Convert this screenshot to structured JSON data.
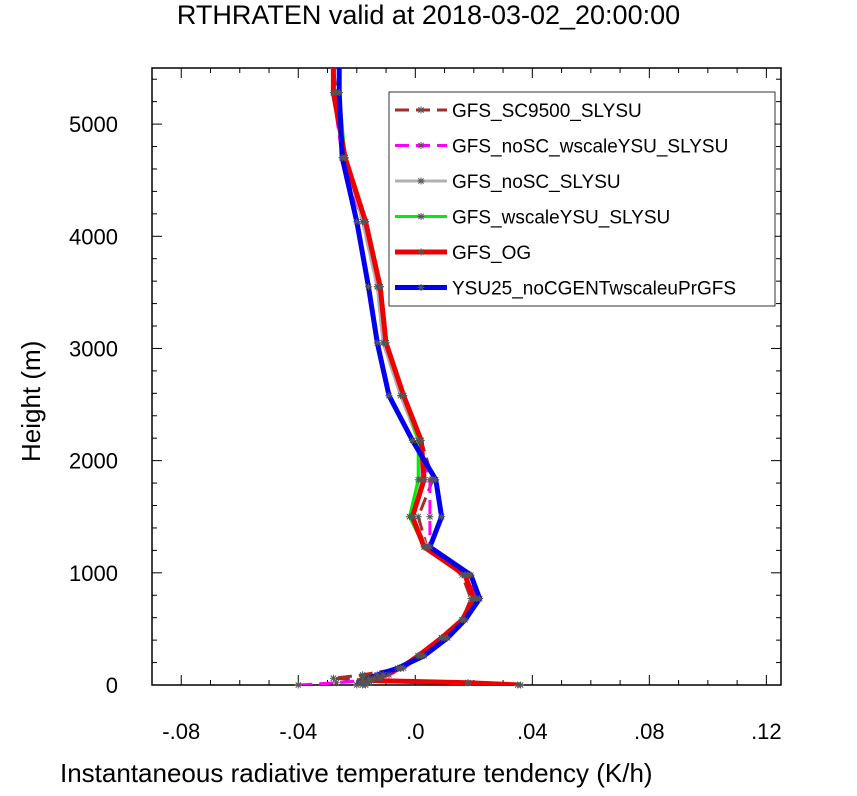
{
  "chart_data": {
    "type": "line",
    "title": "RTHRATEN valid at 2018-03-02_20:00:00",
    "xlabel": "Instantaneous radiative temperature tendency (K/h)",
    "ylabel": "Height (m)",
    "xlim": [
      -0.09,
      0.125
    ],
    "ylim": [
      0,
      5500
    ],
    "x_ticks": [
      -0.08,
      -0.04,
      0.0,
      0.04,
      0.08,
      0.12
    ],
    "x_tick_labels": [
      "-.08",
      "-.04",
      ".0",
      ".04",
      ".08",
      ".12"
    ],
    "y_ticks": [
      0,
      1000,
      2000,
      3000,
      4000,
      5000
    ],
    "y_tick_labels": [
      "0",
      "1000",
      "2000",
      "3000",
      "4000",
      "5000"
    ],
    "legend_position": "top-right",
    "series": [
      {
        "name": "GFS_SC9500_SLYSU",
        "color": "#a52a2a",
        "dash": "dash",
        "width": 3,
        "points": [
          [
            0.035,
            0
          ],
          [
            0.018,
            20
          ],
          [
            -0.015,
            40
          ],
          [
            -0.028,
            60
          ],
          [
            -0.018,
            90
          ],
          [
            -0.005,
            150
          ],
          [
            0.001,
            260
          ],
          [
            0.009,
            420
          ],
          [
            0.016,
            580
          ],
          [
            0.019,
            770
          ],
          [
            0.016,
            980
          ],
          [
            0.004,
            1230
          ],
          [
            0.001,
            1500
          ],
          [
            0.006,
            1830
          ],
          [
            0.002,
            2180
          ],
          [
            -0.004,
            2580
          ],
          [
            -0.01,
            3050
          ],
          [
            -0.012,
            3550
          ],
          [
            -0.017,
            4130
          ],
          [
            -0.024,
            4700
          ],
          [
            -0.027,
            5280
          ],
          [
            -0.028,
            5500
          ]
        ]
      },
      {
        "name": "GFS_noSC_wscaleYSU_SLYSU",
        "color": "#ff00ff",
        "dash": "dash",
        "width": 3,
        "points": [
          [
            -0.04,
            0
          ],
          [
            -0.027,
            20
          ],
          [
            -0.018,
            40
          ],
          [
            -0.012,
            60
          ],
          [
            -0.009,
            90
          ],
          [
            -0.004,
            150
          ],
          [
            0.002,
            260
          ],
          [
            0.01,
            420
          ],
          [
            0.016,
            580
          ],
          [
            0.021,
            770
          ],
          [
            0.018,
            980
          ],
          [
            0.005,
            1230
          ],
          [
            0.005,
            1500
          ],
          [
            0.005,
            1830
          ],
          [
            0.001,
            2180
          ],
          [
            -0.005,
            2580
          ],
          [
            -0.011,
            3050
          ],
          [
            -0.013,
            3550
          ],
          [
            -0.018,
            4130
          ],
          [
            -0.025,
            4700
          ],
          [
            -0.028,
            5280
          ],
          [
            -0.028,
            5500
          ]
        ]
      },
      {
        "name": "GFS_noSC_SLYSU",
        "color": "#b0b0b0",
        "dash": "solid",
        "width": 3,
        "points": [
          [
            -0.017,
            0
          ],
          [
            -0.016,
            20
          ],
          [
            -0.015,
            40
          ],
          [
            -0.014,
            60
          ],
          [
            -0.011,
            90
          ],
          [
            -0.005,
            150
          ],
          [
            0.001,
            260
          ],
          [
            0.009,
            420
          ],
          [
            0.016,
            580
          ],
          [
            0.02,
            770
          ],
          [
            0.017,
            980
          ],
          [
            0.004,
            1230
          ],
          [
            -0.001,
            1500
          ],
          [
            0.002,
            1830
          ],
          [
            0.001,
            2180
          ],
          [
            -0.005,
            2580
          ],
          [
            -0.011,
            3050
          ],
          [
            -0.013,
            3550
          ],
          [
            -0.018,
            4130
          ],
          [
            -0.024,
            4700
          ],
          [
            -0.026,
            5280
          ],
          [
            -0.026,
            5500
          ]
        ]
      },
      {
        "name": "GFS_wscaleYSU_SLYSU",
        "color": "#00ee00",
        "dash": "solid",
        "width": 3,
        "points": [
          [
            -0.018,
            0
          ],
          [
            -0.017,
            20
          ],
          [
            -0.016,
            40
          ],
          [
            -0.014,
            60
          ],
          [
            -0.011,
            90
          ],
          [
            -0.005,
            150
          ],
          [
            0.001,
            260
          ],
          [
            0.009,
            420
          ],
          [
            0.016,
            580
          ],
          [
            0.02,
            770
          ],
          [
            0.017,
            980
          ],
          [
            0.003,
            1230
          ],
          [
            -0.002,
            1500
          ],
          [
            0.001,
            1830
          ],
          [
            0.001,
            2180
          ],
          [
            -0.004,
            2580
          ],
          [
            -0.01,
            3050
          ],
          [
            -0.012,
            3550
          ],
          [
            -0.017,
            4130
          ],
          [
            -0.024,
            4700
          ],
          [
            -0.026,
            5280
          ],
          [
            -0.026,
            5500
          ]
        ]
      },
      {
        "name": "GFS_OG",
        "color": "#ee0000",
        "dash": "solid",
        "width": 5,
        "points": [
          [
            0.036,
            0
          ],
          [
            0.018,
            20
          ],
          [
            -0.015,
            40
          ],
          [
            -0.018,
            60
          ],
          [
            -0.011,
            90
          ],
          [
            -0.005,
            150
          ],
          [
            0.001,
            260
          ],
          [
            0.009,
            420
          ],
          [
            0.016,
            580
          ],
          [
            0.02,
            770
          ],
          [
            0.017,
            980
          ],
          [
            0.003,
            1230
          ],
          [
            -0.001,
            1500
          ],
          [
            0.003,
            1830
          ],
          [
            0.002,
            2180
          ],
          [
            -0.004,
            2580
          ],
          [
            -0.01,
            3050
          ],
          [
            -0.012,
            3550
          ],
          [
            -0.017,
            4130
          ],
          [
            -0.024,
            4700
          ],
          [
            -0.028,
            5280
          ],
          [
            -0.028,
            5500
          ]
        ]
      },
      {
        "name": "YSU25_noCGENTwscaleuPrGFS",
        "color": "#0000ee",
        "dash": "solid",
        "width": 5,
        "points": [
          [
            -0.02,
            0
          ],
          [
            -0.019,
            20
          ],
          [
            -0.018,
            40
          ],
          [
            -0.016,
            60
          ],
          [
            -0.013,
            90
          ],
          [
            -0.006,
            150
          ],
          [
            0.003,
            260
          ],
          [
            0.011,
            420
          ],
          [
            0.017,
            580
          ],
          [
            0.022,
            770
          ],
          [
            0.019,
            980
          ],
          [
            0.005,
            1230
          ],
          [
            0.009,
            1500
          ],
          [
            0.007,
            1830
          ],
          [
            -0.001,
            2180
          ],
          [
            -0.009,
            2580
          ],
          [
            -0.013,
            3050
          ],
          [
            -0.016,
            3550
          ],
          [
            -0.02,
            4130
          ],
          [
            -0.025,
            4700
          ],
          [
            -0.026,
            5280
          ],
          [
            -0.026,
            5500
          ]
        ]
      }
    ]
  }
}
